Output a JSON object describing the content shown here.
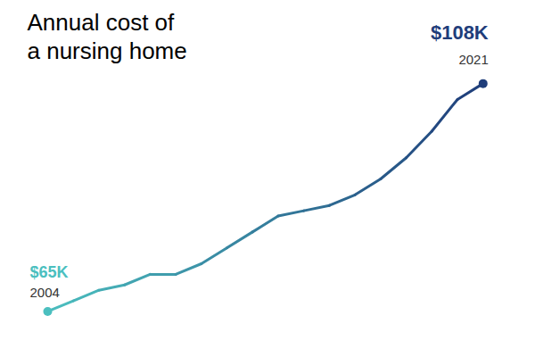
{
  "chart_data": {
    "type": "line",
    "title": "Annual cost of\na nursing home",
    "x": [
      2004,
      2005,
      2006,
      2007,
      2008,
      2009,
      2010,
      2011,
      2012,
      2013,
      2014,
      2015,
      2016,
      2017,
      2018,
      2019,
      2020,
      2021
    ],
    "values": [
      65,
      67,
      69,
      70,
      72,
      72,
      74,
      77,
      80,
      83,
      84,
      85,
      87,
      90,
      94,
      99,
      105,
      108
    ],
    "xlim": [
      2003.2,
      2022.0
    ],
    "ylim": [
      58,
      122
    ],
    "colors": [
      "#4bbfbf",
      "#1f3d7a"
    ],
    "tick_labels": false,
    "grid": false,
    "annotations": [
      {
        "text": "$65K",
        "x": 2004,
        "y": 65,
        "color": "#4bbfbf"
      },
      {
        "text": "2004",
        "x": 2004,
        "y": 65,
        "color": "#333333"
      },
      {
        "text": "$108K",
        "x": 2021,
        "y": 108,
        "color": "#1f3d7a"
      },
      {
        "text": "2021",
        "x": 2021,
        "y": 108,
        "color": "#333333"
      }
    ]
  }
}
